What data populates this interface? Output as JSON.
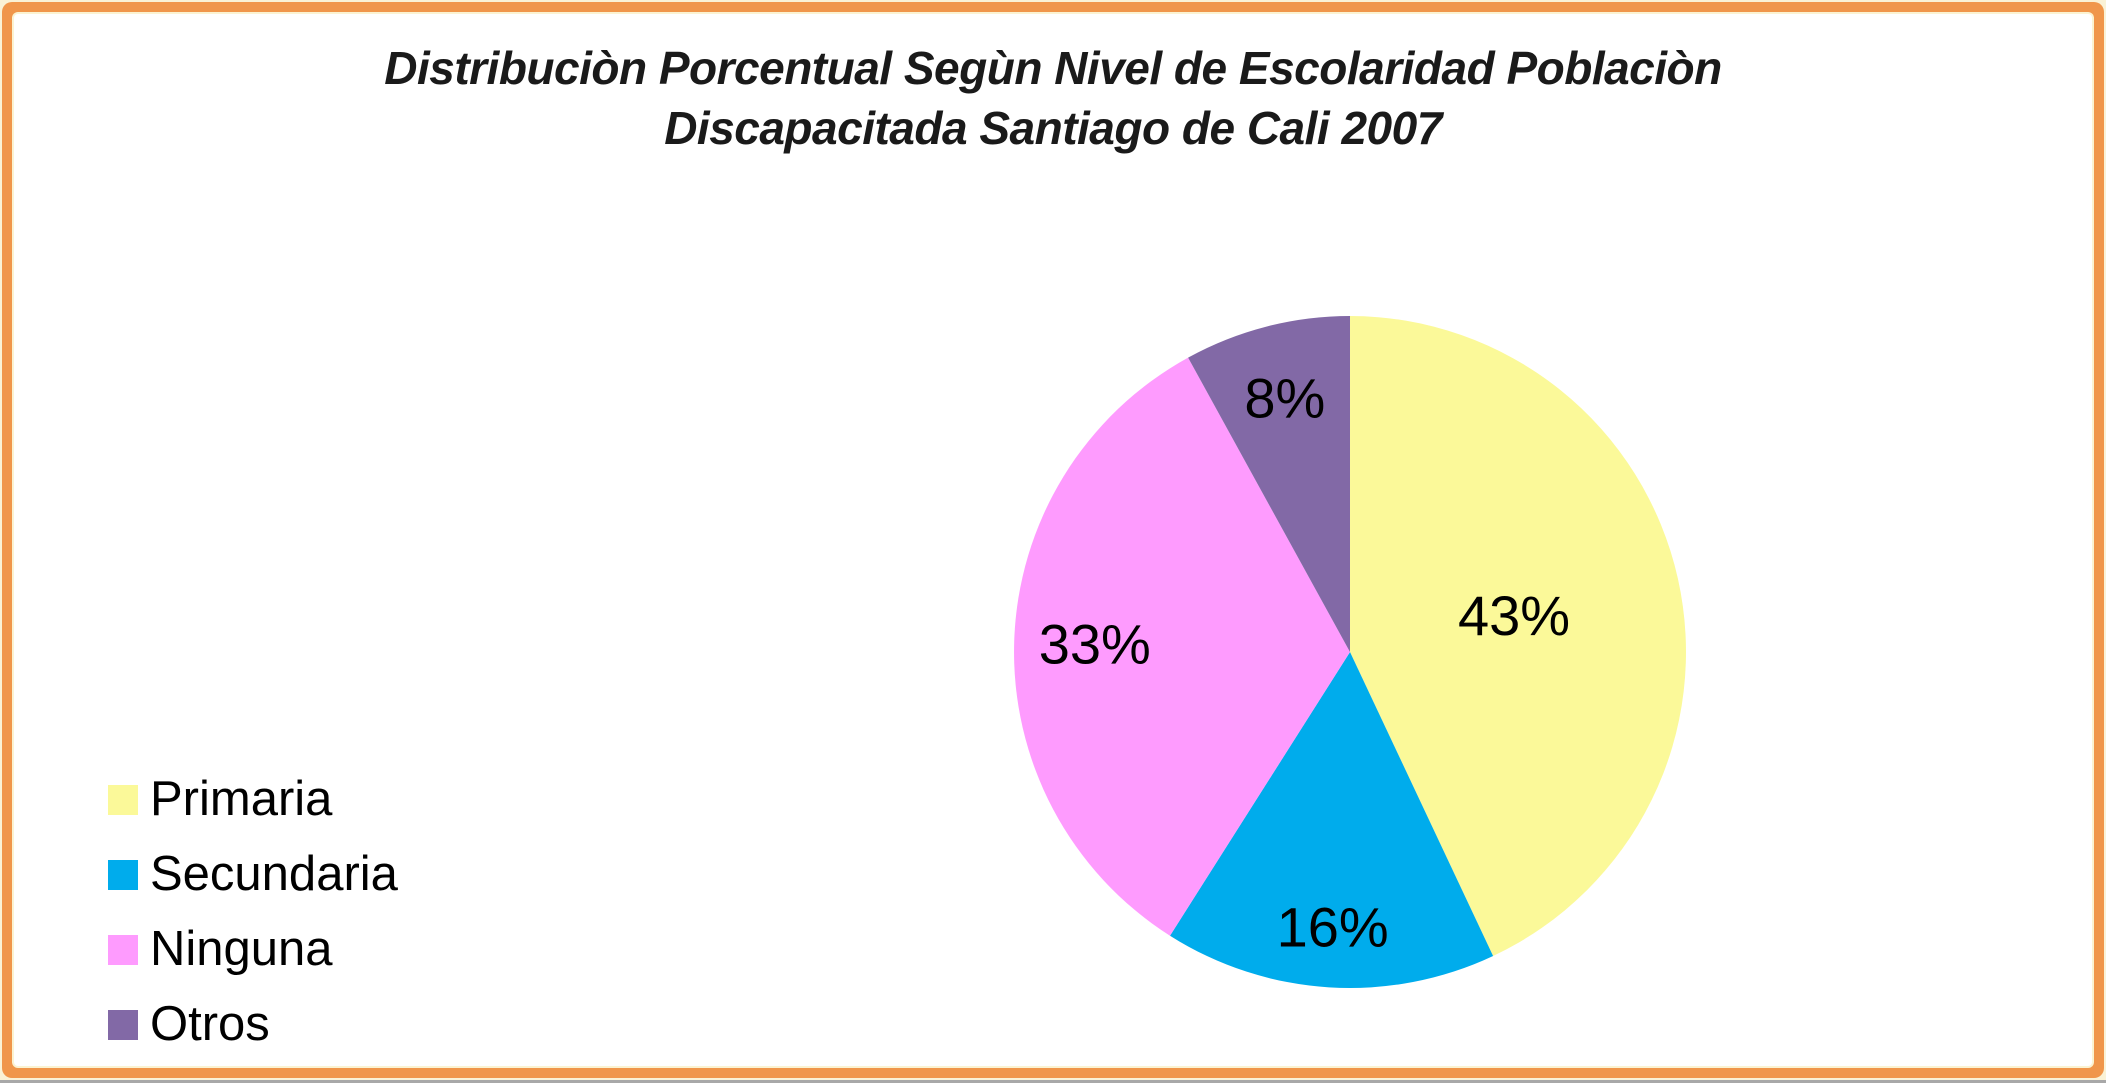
{
  "page": {
    "background_color": "#FFFFFF",
    "frame_color": "#F0964B",
    "frame_edge_color": "#FBF3D2",
    "bottom_edge_color": "#A8A8A8"
  },
  "chart": {
    "title_line1": "Distribuciòn Porcentual Segùn Nivel de Escolaridad Poblaciòn",
    "title_line2": "Discapacitada Santiago de Cali 2007",
    "title_color": "#1A1A1A"
  },
  "chart_data": {
    "type": "pie",
    "title": "Distribuciòn Porcentual Segùn Nivel de Escolaridad Poblaciòn Discapacitada Santiago de Cali 2007",
    "categories": [
      "Primaria",
      "Secundaria",
      "Ninguna",
      "Otros"
    ],
    "values": [
      43,
      16,
      33,
      8
    ],
    "unit": "%",
    "data_labels": [
      "43%",
      "16%",
      "33%",
      "8%"
    ],
    "colors": [
      "#FBF999",
      "#00ACEC",
      "#FE9BFE",
      "#8269A6"
    ],
    "start_angle_deg": 0,
    "direction": "clockwise",
    "legend_position": "bottom-left",
    "label_radius_fraction": [
      0.5,
      0.82,
      0.76,
      0.78
    ]
  },
  "legend": {
    "items": [
      {
        "label": "Primaria",
        "color": "#FBF999"
      },
      {
        "label": "Secundaria",
        "color": "#00ACEC"
      },
      {
        "label": "Ninguna",
        "color": "#FE9BFE"
      },
      {
        "label": "Otros",
        "color": "#8269A6"
      }
    ]
  }
}
